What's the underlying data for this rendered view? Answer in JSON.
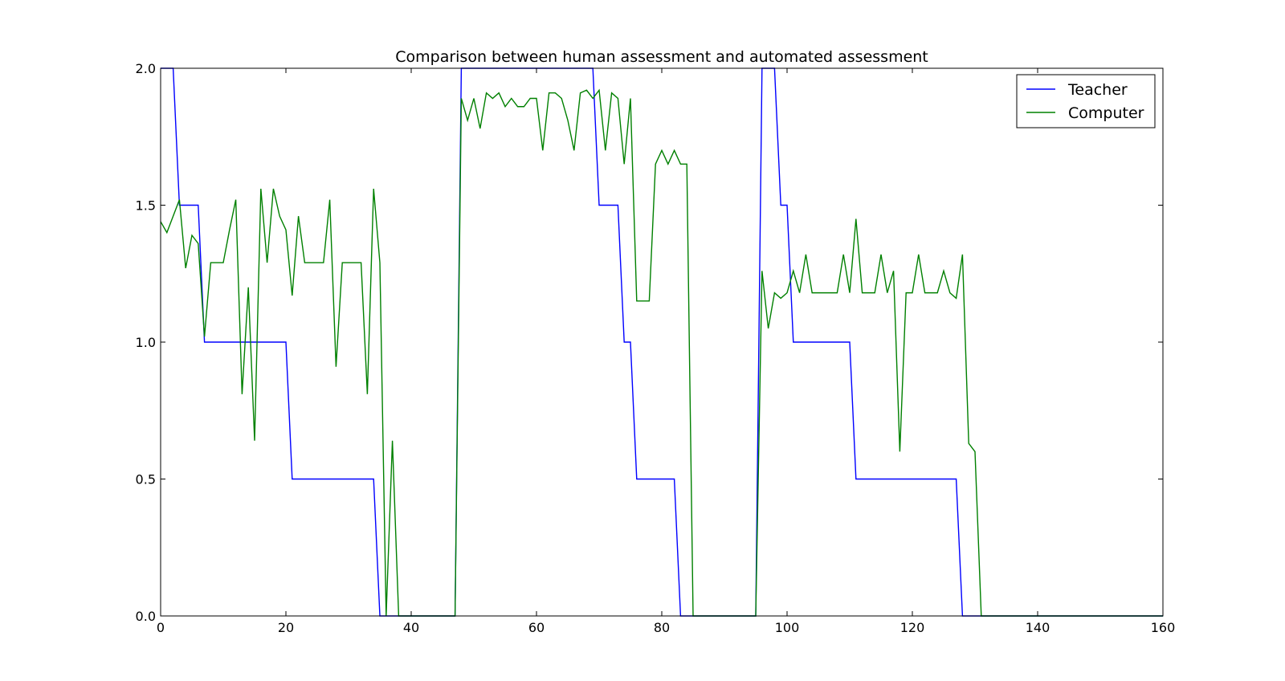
{
  "chart_data": {
    "type": "line",
    "title": "Comparison between human assessment and automated assessment",
    "xlabel": "",
    "ylabel": "",
    "xlim": [
      0,
      160
    ],
    "ylim": [
      0,
      2
    ],
    "x_ticks": [
      0,
      20,
      40,
      60,
      80,
      100,
      120,
      140,
      160
    ],
    "y_ticks": [
      0,
      0.5,
      1,
      1.5,
      2
    ],
    "x_tick_labels": [
      "0",
      "20",
      "40",
      "60",
      "80",
      "100",
      "120",
      "140",
      "160"
    ],
    "y_tick_labels": [
      "0.0",
      "0.5",
      "1.0",
      "1.5",
      "2.0"
    ],
    "grid": false,
    "legend_position": "top-right",
    "series": [
      {
        "name": "Teacher",
        "color": "#0000ff",
        "points": [
          [
            0,
            2
          ],
          [
            2,
            2
          ],
          [
            3,
            1.5
          ],
          [
            6,
            1.5
          ],
          [
            7,
            1
          ],
          [
            20,
            1
          ],
          [
            21,
            0.5
          ],
          [
            34,
            0.5
          ],
          [
            35,
            0
          ],
          [
            47,
            0
          ],
          [
            48,
            2
          ],
          [
            69,
            2
          ],
          [
            70,
            1.5
          ],
          [
            73,
            1.5
          ],
          [
            74,
            1
          ],
          [
            75,
            1
          ],
          [
            76,
            0.5
          ],
          [
            82,
            0.5
          ],
          [
            83,
            0
          ],
          [
            95,
            0
          ],
          [
            96,
            2
          ],
          [
            98,
            2
          ],
          [
            99,
            1.5
          ],
          [
            100,
            1.5
          ],
          [
            101,
            1
          ],
          [
            110,
            1
          ],
          [
            111,
            0.5
          ],
          [
            127,
            0.5
          ],
          [
            128,
            0
          ],
          [
            160,
            0
          ]
        ]
      },
      {
        "name": "Computer",
        "color": "#008000",
        "points": [
          [
            0,
            1.44
          ],
          [
            1,
            1.4
          ],
          [
            2,
            1.46
          ],
          [
            3,
            1.52
          ],
          [
            4,
            1.27
          ],
          [
            5,
            1.39
          ],
          [
            6,
            1.36
          ],
          [
            7,
            1.02
          ],
          [
            8,
            1.29
          ],
          [
            9,
            1.29
          ],
          [
            10,
            1.29
          ],
          [
            11,
            1.41
          ],
          [
            12,
            1.52
          ],
          [
            13,
            0.81
          ],
          [
            14,
            1.2
          ],
          [
            15,
            0.64
          ],
          [
            16,
            1.56
          ],
          [
            17,
            1.29
          ],
          [
            18,
            1.56
          ],
          [
            19,
            1.46
          ],
          [
            20,
            1.41
          ],
          [
            21,
            1.17
          ],
          [
            22,
            1.46
          ],
          [
            23,
            1.29
          ],
          [
            24,
            1.29
          ],
          [
            25,
            1.29
          ],
          [
            26,
            1.29
          ],
          [
            27,
            1.52
          ],
          [
            28,
            0.91
          ],
          [
            29,
            1.29
          ],
          [
            30,
            1.29
          ],
          [
            31,
            1.29
          ],
          [
            32,
            1.29
          ],
          [
            33,
            0.81
          ],
          [
            34,
            1.56
          ],
          [
            35,
            1.29
          ],
          [
            36,
            0
          ],
          [
            37,
            0.64
          ],
          [
            38,
            0
          ],
          [
            47,
            0
          ],
          [
            48,
            1.89
          ],
          [
            49,
            1.81
          ],
          [
            50,
            1.89
          ],
          [
            51,
            1.78
          ],
          [
            52,
            1.91
          ],
          [
            53,
            1.89
          ],
          [
            54,
            1.91
          ],
          [
            55,
            1.86
          ],
          [
            56,
            1.89
          ],
          [
            57,
            1.86
          ],
          [
            58,
            1.86
          ],
          [
            59,
            1.89
          ],
          [
            60,
            1.89
          ],
          [
            61,
            1.7
          ],
          [
            62,
            1.91
          ],
          [
            63,
            1.91
          ],
          [
            64,
            1.89
          ],
          [
            65,
            1.81
          ],
          [
            66,
            1.7
          ],
          [
            67,
            1.91
          ],
          [
            68,
            1.92
          ],
          [
            69,
            1.89
          ],
          [
            70,
            1.92
          ],
          [
            71,
            1.7
          ],
          [
            72,
            1.91
          ],
          [
            73,
            1.89
          ],
          [
            74,
            1.65
          ],
          [
            75,
            1.89
          ],
          [
            76,
            1.15
          ],
          [
            77,
            1.15
          ],
          [
            78,
            1.15
          ],
          [
            79,
            1.65
          ],
          [
            80,
            1.7
          ],
          [
            81,
            1.65
          ],
          [
            82,
            1.7
          ],
          [
            83,
            1.65
          ],
          [
            84,
            1.65
          ],
          [
            85,
            0
          ],
          [
            95,
            0
          ],
          [
            96,
            1.26
          ],
          [
            97,
            1.05
          ],
          [
            98,
            1.18
          ],
          [
            99,
            1.16
          ],
          [
            100,
            1.18
          ],
          [
            101,
            1.26
          ],
          [
            102,
            1.18
          ],
          [
            103,
            1.32
          ],
          [
            104,
            1.18
          ],
          [
            105,
            1.18
          ],
          [
            106,
            1.18
          ],
          [
            107,
            1.18
          ],
          [
            108,
            1.18
          ],
          [
            109,
            1.32
          ],
          [
            110,
            1.18
          ],
          [
            111,
            1.45
          ],
          [
            112,
            1.18
          ],
          [
            113,
            1.18
          ],
          [
            114,
            1.18
          ],
          [
            115,
            1.32
          ],
          [
            116,
            1.18
          ],
          [
            117,
            1.26
          ],
          [
            118,
            0.6
          ],
          [
            119,
            1.18
          ],
          [
            120,
            1.18
          ],
          [
            121,
            1.32
          ],
          [
            122,
            1.18
          ],
          [
            123,
            1.18
          ],
          [
            124,
            1.18
          ],
          [
            125,
            1.26
          ],
          [
            126,
            1.18
          ],
          [
            127,
            1.16
          ],
          [
            128,
            1.32
          ],
          [
            129,
            0.63
          ],
          [
            130,
            0.6
          ],
          [
            131,
            0
          ],
          [
            160,
            0
          ]
        ]
      }
    ]
  }
}
